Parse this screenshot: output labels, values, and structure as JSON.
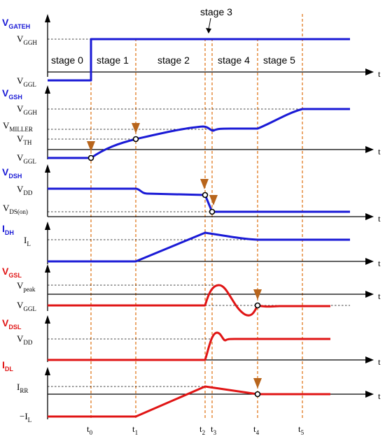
{
  "signals": {
    "gate_h": {
      "main": "V",
      "sub": "GATEH"
    },
    "vgs_h": {
      "main": "V",
      "sub": "GSH"
    },
    "vds_h": {
      "main": "V",
      "sub": "DSH"
    },
    "id_h": {
      "main": "I",
      "sub": "DH"
    },
    "vgs_l": {
      "main": "V",
      "sub": "GSL"
    },
    "vds_l": {
      "main": "V",
      "sub": "DSL"
    },
    "id_l": {
      "main": "I",
      "sub": "DL"
    }
  },
  "levels": {
    "vggh_1": {
      "main": "V",
      "sub": "GGH"
    },
    "vggl_1": {
      "main": "V",
      "sub": "GGL"
    },
    "vggh_2": {
      "main": "V",
      "sub": "GGH"
    },
    "vmiller": {
      "main": "V",
      "sub": "MILLER"
    },
    "vth": {
      "main": "V",
      "sub": "TH"
    },
    "vggl_2": {
      "main": "V",
      "sub": "GGL"
    },
    "vdd_1": {
      "main": "V",
      "sub": "DD"
    },
    "vdson": {
      "main": "V",
      "sub": "DS(on)"
    },
    "il": {
      "main": "I",
      "sub": "L"
    },
    "vpeak": {
      "main": "V",
      "sub": "peak"
    },
    "vggl_3": {
      "main": "V",
      "sub": "GGL"
    },
    "vdd_2": {
      "main": "V",
      "sub": "DD"
    },
    "irr": {
      "main": "I",
      "sub": "RR"
    },
    "neg_il": {
      "main": "−I",
      "sub": "L"
    }
  },
  "stages": [
    "stage 0",
    "stage 1",
    "stage 2",
    "stage 3",
    "stage 4",
    "stage 5"
  ],
  "times": [
    {
      "main": "t",
      "sub": "0"
    },
    {
      "main": "t",
      "sub": "1"
    },
    {
      "main": "t",
      "sub": "2"
    },
    {
      "main": "t",
      "sub": "3"
    },
    {
      "main": "t",
      "sub": "4"
    },
    {
      "main": "t",
      "sub": "5"
    }
  ],
  "axis_label": "t",
  "colors": {
    "high_side": "#1a1ad6",
    "low_side": "#e01515",
    "time_marker": "#e07a1f",
    "pointer_arrow": "#b8651c"
  }
}
